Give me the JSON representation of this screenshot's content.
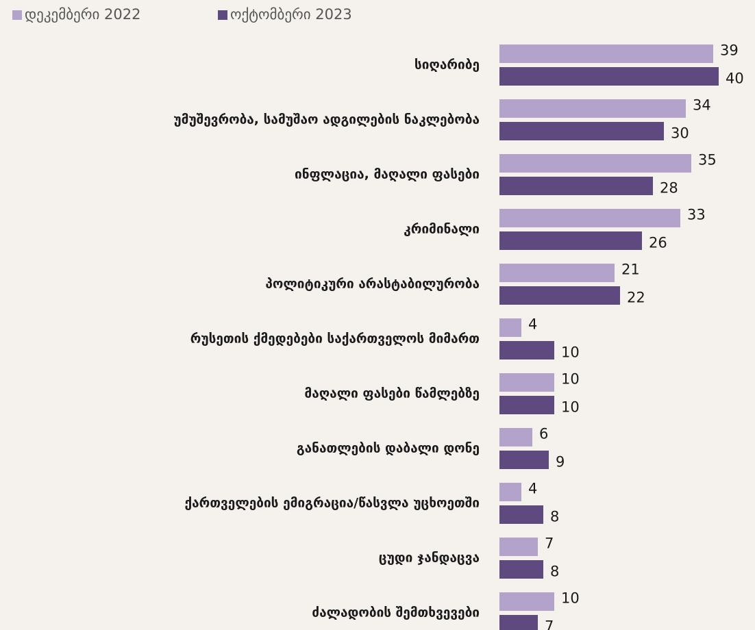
{
  "chart_data": {
    "type": "bar",
    "orientation": "horizontal",
    "categories": [
      "სიღარიბე",
      "უმუშევრობა, სამუშაო ადგილების ნაკლებობა",
      "ინფლაცია, მაღალი ფასები",
      "კრიმინალი",
      "პოლიტიკური არასტაბილურობა",
      "რუსეთის ქმედებები საქართველოს მიმართ",
      "მაღალი ფასები წამლებზე",
      "განათლების დაბალი დონე",
      "ქართველების ემიგრაცია/წასვლა უცხოეთში",
      "ცუდი ჯანდაცვა",
      "ძალადობის შემთხვევები"
    ],
    "series": [
      {
        "name": "დეკემბერი 2022",
        "color": "#b3a2c9",
        "values": [
          39,
          34,
          35,
          33,
          21,
          4,
          10,
          6,
          4,
          7,
          10
        ]
      },
      {
        "name": "ოქტომბერი 2023",
        "color": "#5e4a7e",
        "values": [
          40,
          30,
          28,
          26,
          22,
          10,
          10,
          9,
          8,
          8,
          7
        ]
      }
    ],
    "legend": "top-left"
  }
}
